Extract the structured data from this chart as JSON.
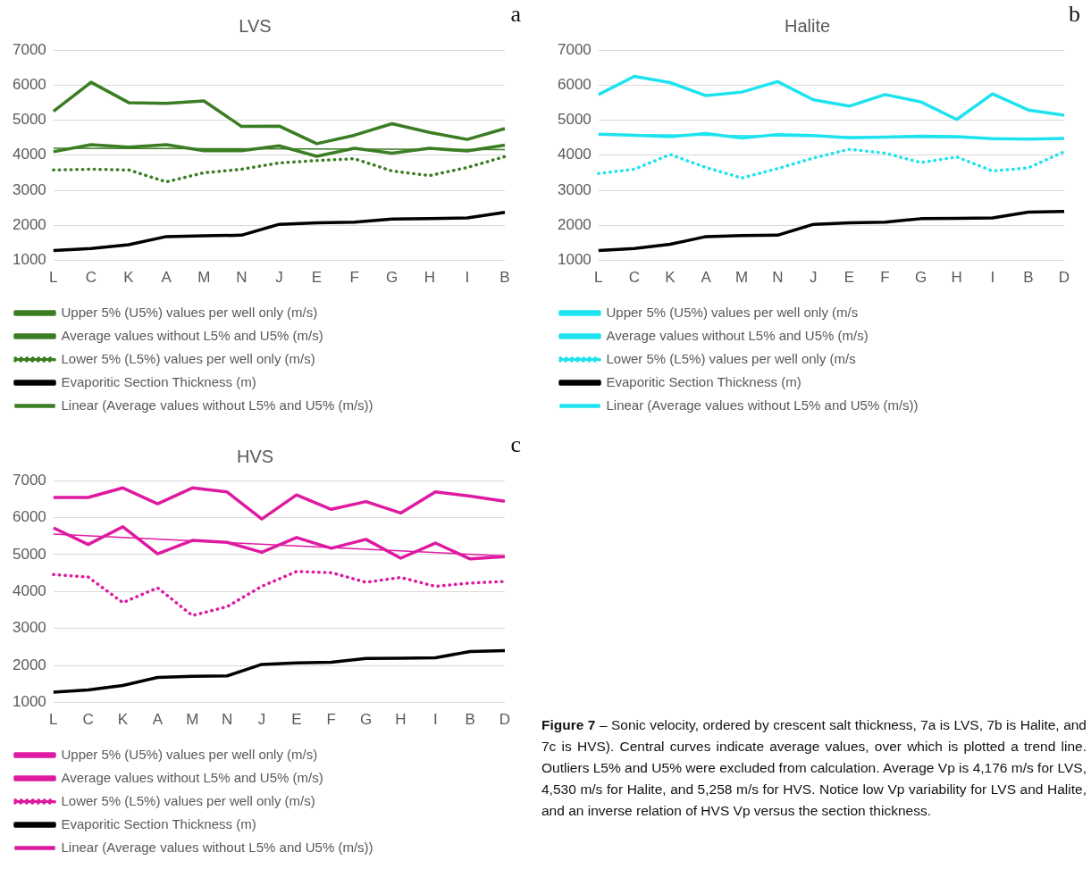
{
  "chart_data": [
    {
      "type": "line",
      "title": "LVS",
      "annotations": [
        "a"
      ],
      "categories": [
        "L",
        "C",
        "K",
        "A",
        "M",
        "N",
        "J",
        "E",
        "F",
        "G",
        "H",
        "I",
        "B"
      ],
      "ylim": [
        1000,
        7000
      ],
      "yticks": [
        1000,
        2000,
        3000,
        4000,
        5000,
        6000,
        7000
      ],
      "grid": "y",
      "legend": "bottom",
      "series": [
        {
          "name": "Upper 5% (U5%) values per well only (m/s)",
          "color": "#3b7d23",
          "line_style": "solid",
          "values": [
            5250,
            6080,
            5500,
            5480,
            5550,
            4820,
            4830,
            4330,
            4570,
            4900,
            4650,
            4450,
            4760
          ]
        },
        {
          "name": "Average values without L5% and U5% (m/s)",
          "color": "#3b7d23",
          "line_style": "solid",
          "values": [
            4100,
            4300,
            4230,
            4300,
            4130,
            4130,
            4270,
            3970,
            4200,
            4060,
            4200,
            4120,
            4290
          ]
        },
        {
          "name": "Lower 5% (L5%) values per well only (m/s)",
          "color": "#3b7d23",
          "line_style": "dotted",
          "values": [
            3580,
            3600,
            3580,
            3240,
            3500,
            3600,
            3780,
            3850,
            3900,
            3550,
            3420,
            3650,
            3960
          ]
        },
        {
          "name": "Evaporitic Section Thickness (m)",
          "color": "#000000",
          "line_style": "solid",
          "values": [
            1280,
            1340,
            1450,
            1680,
            1700,
            1720,
            2030,
            2070,
            2090,
            2180,
            2190,
            2210,
            2370
          ]
        },
        {
          "name": "Linear (Average values without L5% and U5% (m/s))",
          "color": "#3b7d23",
          "line_style": "solid",
          "x": [
            "L",
            "B"
          ],
          "values": [
            4200,
            4160
          ]
        }
      ]
    },
    {
      "type": "line",
      "title": "Halite",
      "annotations": [
        "b"
      ],
      "categories": [
        "L",
        "C",
        "K",
        "A",
        "M",
        "N",
        "J",
        "E",
        "F",
        "G",
        "H",
        "I",
        "B",
        "D"
      ],
      "ylim": [
        1000,
        7000
      ],
      "yticks": [
        1000,
        2000,
        3000,
        4000,
        5000,
        6000,
        7000
      ],
      "grid": "y",
      "legend": "bottom",
      "series": [
        {
          "name": "Upper 5% (U5%) values per well only (m/s",
          "color": "#1ee3ef",
          "line_style": "solid",
          "values": [
            5730,
            6250,
            6070,
            5700,
            5800,
            6100,
            5580,
            5400,
            5730,
            5520,
            5020,
            5750,
            5290,
            5140
          ]
        },
        {
          "name": "Average values without L5% and U5% (m/s)",
          "color": "#1ee3ef",
          "line_style": "solid",
          "values": [
            4600,
            4570,
            4530,
            4620,
            4490,
            4590,
            4560,
            4500,
            4520,
            4540,
            4530,
            4470,
            4460,
            4480
          ]
        },
        {
          "name": "Lower 5% (L5%) values per well only (m/s",
          "color": "#1ee3ef",
          "line_style": "dotted",
          "values": [
            3480,
            3600,
            4020,
            3650,
            3350,
            3620,
            3920,
            4170,
            4060,
            3790,
            3950,
            3550,
            3640,
            4100
          ]
        },
        {
          "name": "Evaporitic Section Thickness (m)",
          "color": "#000000",
          "line_style": "solid",
          "values": [
            1280,
            1340,
            1460,
            1680,
            1710,
            1720,
            2030,
            2070,
            2090,
            2190,
            2200,
            2210,
            2380,
            2400
          ]
        },
        {
          "name": "Linear (Average values without L5% and U5% (m/s))",
          "color": "#1ee3ef",
          "line_style": "solid",
          "x": [
            "L",
            "D"
          ],
          "values": [
            4600,
            4470
          ]
        }
      ]
    },
    {
      "type": "line",
      "title": "HVS",
      "annotations": [
        "c"
      ],
      "categories": [
        "L",
        "C",
        "K",
        "A",
        "M",
        "N",
        "J",
        "E",
        "F",
        "G",
        "H",
        "I",
        "B",
        "D"
      ],
      "ylim": [
        1000,
        7000
      ],
      "yticks": [
        1000,
        2000,
        3000,
        4000,
        5000,
        6000,
        7000
      ],
      "grid": "y",
      "legend": "bottom",
      "series": [
        {
          "name": "Upper 5% (U5%) values per well only (m/s)",
          "color": "#de1aa0",
          "line_style": "solid",
          "values": [
            6540,
            6540,
            6800,
            6370,
            6800,
            6690,
            5960,
            6610,
            6220,
            6430,
            6120,
            6690,
            6580,
            6440
          ]
        },
        {
          "name": "Average values without L5% and U5% (m/s)",
          "color": "#de1aa0",
          "line_style": "solid",
          "values": [
            5720,
            5270,
            5750,
            5020,
            5380,
            5330,
            5060,
            5460,
            5170,
            5410,
            4900,
            5310,
            4880,
            4940
          ]
        },
        {
          "name": "Lower 5% (L5%) values per well only (m/s)",
          "color": "#de1aa0",
          "line_style": "dotted",
          "values": [
            4460,
            4390,
            3700,
            4100,
            3350,
            3590,
            4140,
            4540,
            4510,
            4250,
            4380,
            4140,
            4230,
            4270
          ]
        },
        {
          "name": "Evaporitic Section Thickness (m)",
          "color": "#000000",
          "line_style": "solid",
          "values": [
            1280,
            1340,
            1460,
            1680,
            1710,
            1720,
            2030,
            2070,
            2090,
            2190,
            2200,
            2210,
            2380,
            2400
          ]
        },
        {
          "name": "Linear (Average values without L5% and U5% (m/s))",
          "color": "#de1aa0",
          "line_style": "solid",
          "x": [
            "L",
            "D"
          ],
          "values": [
            5550,
            4960
          ]
        }
      ]
    },
    {
      "type": "other",
      "annotations": [
        "Figure 7",
        "– Sonic velocity, ordered by crescent salt thickness, 7a is LVS, 7b is Halite, and 7c is HVS). Central curves indicate average values, over which is plotted a trend line. Outliers L5% and U5% were excluded from calculation. Average Vp is 4,176 m/s for LVS, 4,530 m/s for Halite, and 5,258 m/s for HVS. Notice low Vp variability for LVS and Halite, and an inverse relation of HVS Vp versus the section thickness."
      ]
    }
  ]
}
